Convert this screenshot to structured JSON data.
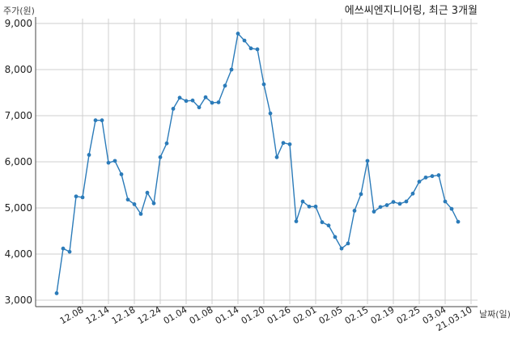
{
  "chart_data": {
    "type": "line",
    "title": "에쓰씨엔지니어링, 최근 3개월",
    "xlabel": "날짜(일)",
    "ylabel": "주가(원)",
    "ylim": [
      3000,
      9000
    ],
    "yticks": [
      3000,
      4000,
      5000,
      6000,
      7000,
      8000,
      9000
    ],
    "ytick_labels": [
      "3,000",
      "4,000",
      "5,000",
      "6,000",
      "7,000",
      "8,000",
      "9,000"
    ],
    "xtick_labels": [
      "12.08",
      "12.14",
      "12.18",
      "12.24",
      "01.04",
      "01.08",
      "01.14",
      "01.20",
      "01.26",
      "02.01",
      "02.05",
      "02.15",
      "02.19",
      "02.25",
      "03.04",
      "21.03.10"
    ],
    "xtick_indices": [
      4,
      8,
      12,
      16,
      20,
      24,
      28,
      32,
      36,
      40,
      44,
      48,
      52,
      56,
      60,
      64
    ],
    "grid": true,
    "color": "#2b7bb9",
    "series": [
      {
        "values": [
          3150,
          4120,
          4050,
          5250,
          5230,
          6150,
          6900,
          6900,
          5980,
          6020,
          5730,
          5180,
          5080,
          4870,
          5330,
          5100,
          6100,
          6400,
          7150,
          7390,
          7320,
          7330,
          7180,
          7400,
          7280,
          7290,
          7650,
          8000,
          8780,
          8630,
          8460,
          8440,
          7680,
          7050,
          6100,
          6410,
          6380,
          4710,
          5140,
          5030,
          5030,
          4690,
          4620,
          4370,
          4120,
          4230,
          4940,
          5300,
          6020,
          4920,
          5020,
          5060,
          5130,
          5090,
          5140,
          5310,
          5570,
          5660,
          5690,
          5710,
          5140,
          4980,
          4700
        ]
      }
    ]
  }
}
